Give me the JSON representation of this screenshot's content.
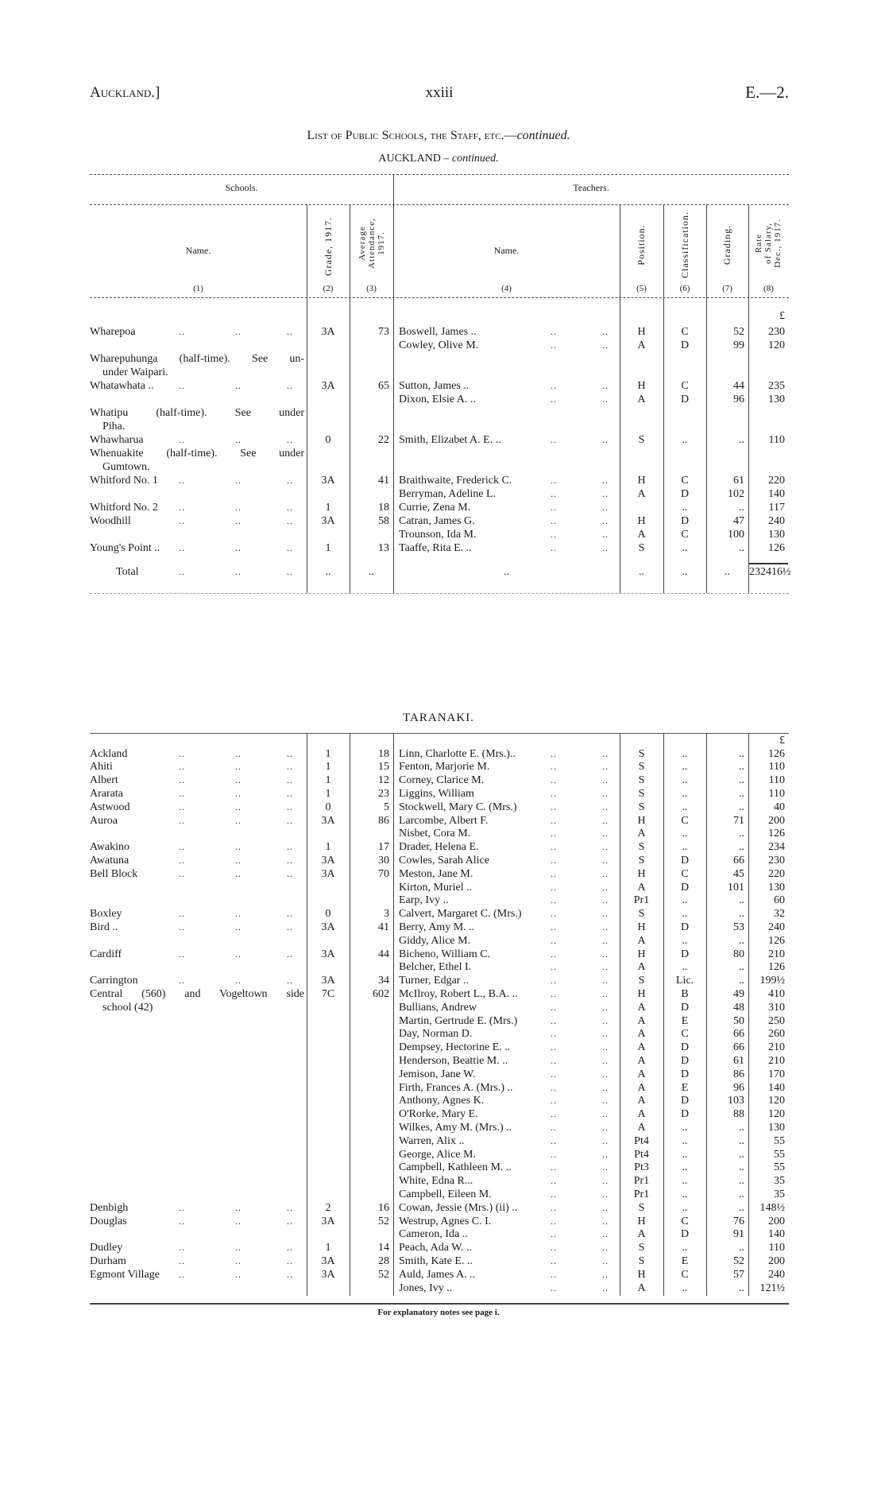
{
  "page_header": {
    "left": "Auckland.]",
    "center": "xxiii",
    "right": "E.—2."
  },
  "title": {
    "main": "List of Public Schools, the Staff, etc.—",
    "italic": "continued."
  },
  "auckland": {
    "heading": "AUCKLAND",
    "heading_suffix": "– continued.",
    "group_schools": "Schools.",
    "group_teachers": "Teachers.",
    "columns": {
      "school_name": "Name.",
      "grade": "Grade, 1917.",
      "attendance_1": "Average",
      "attendance_2": "Attendance,",
      "attendance_3": "1917.",
      "teacher_name": "Name.",
      "position": "Position.",
      "classification": "Classification.",
      "grading": "Grading.",
      "salary_1": "Rate",
      "salary_2": "of Salary,",
      "salary_3": "Dec., 1917."
    },
    "column_numbers": [
      "(1)",
      "(2)",
      "(3)",
      "(4)",
      "(5)",
      "(6)",
      "(7)",
      "(8)"
    ],
    "currency": "£",
    "rows": [
      [
        "Wharepoa",
        "3A",
        "73",
        "Boswell, James ..",
        "H",
        "C",
        "52",
        "230"
      ],
      [
        "",
        "",
        "",
        "Cowley, Olive M.",
        "A",
        "D",
        "99",
        "120"
      ],
      [
        "Wharepuhunga (half-time). See un-",
        "",
        "",
        "",
        "",
        "",
        "",
        ""
      ],
      [
        "under Waipari.",
        "",
        "",
        "",
        "",
        "",
        "",
        ""
      ],
      [
        "Whatawhata ..",
        "3A",
        "65",
        "Sutton, James ..",
        "H",
        "C",
        "44",
        "235"
      ],
      [
        "",
        "",
        "",
        "Dixon, Elsie A. ..",
        "A",
        "D",
        "96",
        "130"
      ],
      [
        "Whatipu (half-time). See under",
        "",
        "",
        "",
        "",
        "",
        "",
        ""
      ],
      [
        "Piha.",
        "",
        "",
        "",
        "",
        "",
        "",
        ""
      ],
      [
        "Whawharua",
        "0",
        "22",
        "Smith, Elizabet A. E. ..",
        "S",
        "..",
        "..",
        "110"
      ],
      [
        "Whenuakite (half-time). See under",
        "",
        "",
        "",
        "",
        "",
        "",
        ""
      ],
      [
        "Gumtown.",
        "",
        "",
        "",
        "",
        "",
        "",
        ""
      ],
      [
        "Whitford No. 1",
        "3A",
        "41",
        "Braithwaite, Frederick C.",
        "H",
        "C",
        "61",
        "220"
      ],
      [
        "",
        "",
        "",
        "Berryman, Adeline L.",
        "A",
        "D",
        "102",
        "140"
      ],
      [
        "Whitford No. 2",
        "1",
        "18",
        "Currie, Zena M.",
        "",
        "..",
        "..",
        "117"
      ],
      [
        "Woodhill",
        "3A",
        "58",
        "Catran, James G.",
        "H",
        "D",
        "47",
        "240"
      ],
      [
        "",
        "",
        "",
        "Trounson, Ida M.",
        "A",
        "C",
        "100",
        "130"
      ],
      [
        "Young's Point ..",
        "1",
        "13",
        "Taaffe, Rita E. ..",
        "S",
        "..",
        "..",
        "126"
      ]
    ],
    "total": {
      "label": "Total",
      "grade": "..",
      "att": "..",
      "teacher": "..",
      "pos": "..",
      "cls": "..",
      "grd": "..",
      "sal": "232416½"
    }
  },
  "taranaki": {
    "heading": "TARANAKI.",
    "currency": "£",
    "rows": [
      [
        "Ackland",
        "1",
        "18",
        "Linn, Charlotte E. (Mrs.)..",
        "S",
        "..",
        "..",
        "126"
      ],
      [
        "Ahiti",
        "1",
        "15",
        "Fenton, Marjorie M.",
        "S",
        "..",
        "..",
        "110"
      ],
      [
        "Albert",
        "1",
        "12",
        "Corney, Clarice M.",
        "S",
        "..",
        "..",
        "110"
      ],
      [
        "Ararata",
        "1",
        "23",
        "Liggins, William",
        "S",
        "..",
        "..",
        "110"
      ],
      [
        "Astwood",
        "0",
        "5",
        "Stockwell, Mary C. (Mrs.)",
        "S",
        "..",
        "..",
        "40"
      ],
      [
        "Auroa",
        "3A",
        "86",
        "Larcombe, Albert F.",
        "H",
        "C",
        "71",
        "200"
      ],
      [
        "",
        "",
        "",
        "Nisbet, Cora M.",
        "A",
        "..",
        "..",
        "126"
      ],
      [
        "Awakino",
        "1",
        "17",
        "Drader, Helena E.",
        "S",
        "..",
        "..",
        "234"
      ],
      [
        "Awatuna",
        "3A",
        "30",
        "Cowles, Sarah Alice",
        "S",
        "D",
        "66",
        "230"
      ],
      [
        "Bell Block",
        "3A",
        "70",
        "Meston, Jane M.",
        "H",
        "C",
        "45",
        "220"
      ],
      [
        "",
        "",
        "",
        "Kirton, Muriel ..",
        "A",
        "D",
        "101",
        "130"
      ],
      [
        "",
        "",
        "",
        "Earp, Ivy ..",
        "Pr1",
        "..",
        "..",
        "60"
      ],
      [
        "Boxley",
        "0",
        "3",
        "Calvert, Margaret C. (Mrs.)",
        "S",
        "..",
        "..",
        "32"
      ],
      [
        "Bird ..",
        "3A",
        "41",
        "Berry, Amy M. ..",
        "H",
        "D",
        "53",
        "240"
      ],
      [
        "",
        "",
        "",
        "Giddy, Alice M.",
        "A",
        "..",
        "..",
        "126"
      ],
      [
        "Cardiff",
        "3A",
        "44",
        "Bicheno, William C.",
        "H",
        "D",
        "80",
        "210"
      ],
      [
        "",
        "",
        "",
        "Belcher, Ethel I.",
        "A",
        "..",
        "..",
        "126"
      ],
      [
        "Carrington",
        "3A",
        "34",
        "Turner, Edgar ..",
        "S",
        "Lic.",
        "..",
        "199½"
      ],
      [
        "Central (560) and Vogeltown side",
        "7C",
        "602",
        "McIlroy, Robert L., B.A. ..",
        "H",
        "B",
        "49",
        "410"
      ],
      [
        "school (42)",
        "",
        "",
        "Bullians, Andrew",
        "A",
        "D",
        "48",
        "310"
      ],
      [
        "",
        "",
        "",
        "Martin, Gertrude E. (Mrs.)",
        "A",
        "E",
        "50",
        "250"
      ],
      [
        "",
        "",
        "",
        "Day, Norman D.",
        "A",
        "C",
        "66",
        "260"
      ],
      [
        "",
        "",
        "",
        "Dempsey, Hectorine E. ..",
        "A",
        "D",
        "66",
        "210"
      ],
      [
        "",
        "",
        "",
        "Henderson, Beattie M. ..",
        "A",
        "D",
        "61",
        "210"
      ],
      [
        "",
        "",
        "",
        "Jemison, Jane W.",
        "A",
        "D",
        "86",
        "170"
      ],
      [
        "",
        "",
        "",
        "Firth, Frances A. (Mrs.) ..",
        "A",
        "E",
        "96",
        "140"
      ],
      [
        "",
        "",
        "",
        "Anthony, Agnes K.",
        "A",
        "D",
        "103",
        "120"
      ],
      [
        "",
        "",
        "",
        "O'Rorke, Mary E.",
        "A",
        "D",
        "88",
        "120"
      ],
      [
        "",
        "",
        "",
        "Wilkes, Amy M. (Mrs.) ..",
        "A",
        "..",
        "..",
        "130"
      ],
      [
        "",
        "",
        "",
        "Warren, Alix ..",
        "Pt4",
        "..",
        "..",
        "55"
      ],
      [
        "",
        "",
        "",
        "George, Alice M.",
        "Pt4",
        "..",
        "..",
        "55"
      ],
      [
        "",
        "",
        "",
        "Campbell, Kathleen M. ..",
        "Pt3",
        "..",
        "..",
        "55"
      ],
      [
        "",
        "",
        "",
        "White, Edna R...",
        "Pr1",
        "..",
        "..",
        "35"
      ],
      [
        "",
        "",
        "",
        "Campbell, Eileen M.",
        "Pr1",
        "..",
        "..",
        "35"
      ],
      [
        "Denbigh",
        "2",
        "16",
        "Cowan, Jessie (Mrs.) (ii) ..",
        "S",
        "..",
        "..",
        "148½"
      ],
      [
        "Douglas",
        "3A",
        "52",
        "Westrup, Agnes C. I.",
        "H",
        "C",
        "76",
        "200"
      ],
      [
        "",
        "",
        "",
        "Cameron, Ida ..",
        "A",
        "D",
        "91",
        "140"
      ],
      [
        "Dudley",
        "1",
        "14",
        "Peach, Ada W. ..",
        "S",
        "..",
        "..",
        "110"
      ],
      [
        "Durham",
        "3A",
        "28",
        "Smith, Kate E. ..",
        "S",
        "E",
        "52",
        "200"
      ],
      [
        "Egmont Village",
        "3A",
        "52",
        "Auld, James A. ..",
        "H",
        "C",
        "57",
        "240"
      ],
      [
        "",
        "",
        "",
        "Jones, Ivy ..",
        "A",
        "..",
        "..",
        "121½"
      ]
    ]
  },
  "leader": "..",
  "footnote": "For explanatory notes see page i."
}
